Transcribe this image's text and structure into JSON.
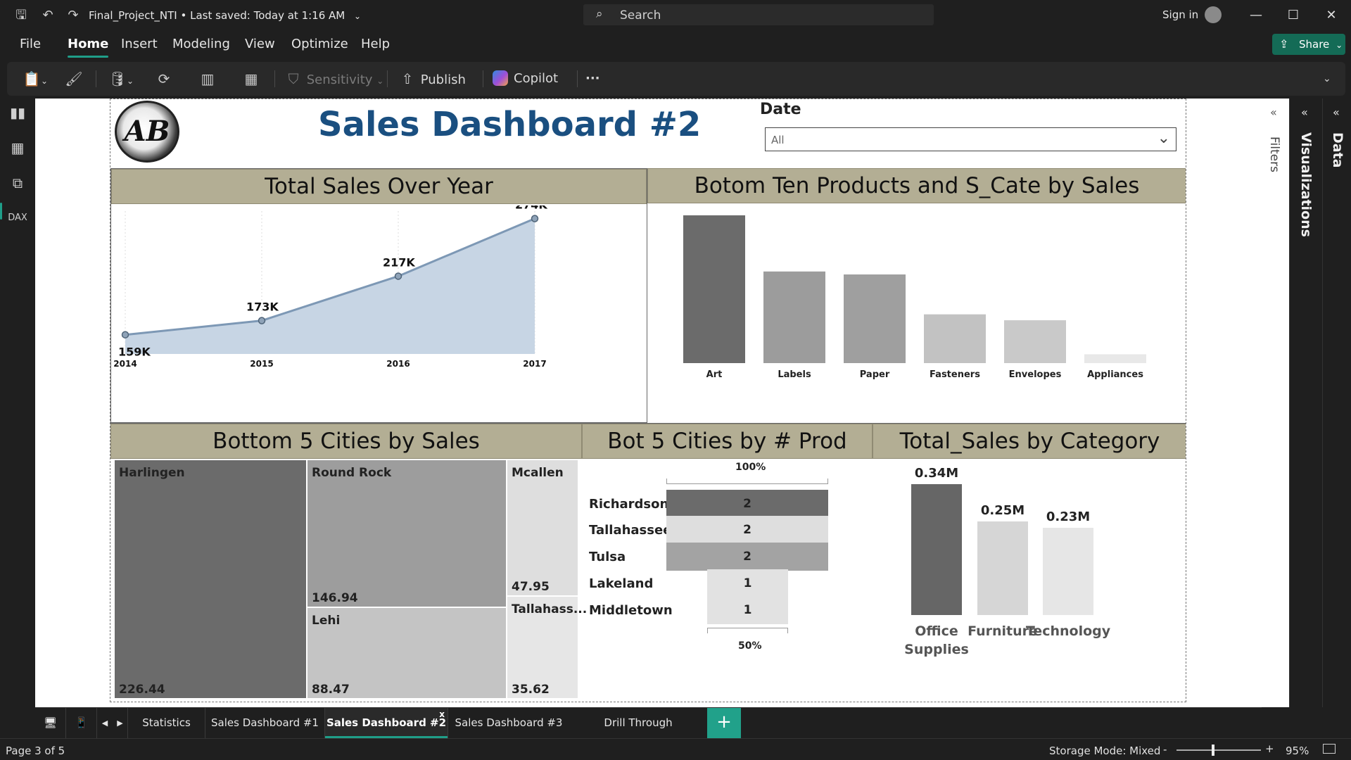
{
  "titlebar": {
    "file_name": "Final_Project_NTI",
    "saved_status": "Last saved: Today at 1:16 AM",
    "search_label": "Search",
    "signin_label": "Sign in"
  },
  "menu": {
    "items": [
      "File",
      "Home",
      "Insert",
      "Modeling",
      "View",
      "Optimize",
      "Help"
    ],
    "active": "Home",
    "share_label": "Share"
  },
  "ribbon": {
    "sensitivity_label": "Sensitivity",
    "publish_label": "Publish",
    "copilot_label": "Copilot",
    "more_label": "···"
  },
  "report": {
    "title": "Sales Dashboard #2",
    "logo_text": "AB",
    "date_filter": {
      "label": "Date",
      "value": "All"
    },
    "panels": {
      "line": "Total Sales Over Year",
      "bar": "Botom Ten Products and S_Cate by Sales",
      "treemap": "Bottom 5 Cities by Sales",
      "funnel": "Bot 5 Cities by # Prod",
      "category": "Total_Sales by Category"
    },
    "treemap": {
      "harlingen": {
        "name": "Harlingen",
        "value": "226.44"
      },
      "roundrock": {
        "name": "Round Rock",
        "value": "146.94"
      },
      "lehi": {
        "name": "Lehi",
        "value": "88.47"
      },
      "mcallen": {
        "name": "Mcallen",
        "value": "47.95"
      },
      "tallahassee": {
        "name": "Tallahass...",
        "value": "35.62"
      }
    },
    "funnel": {
      "top_pct": "100%",
      "bottom_pct": "50%",
      "rows": [
        {
          "city": "Richardson",
          "value": "2"
        },
        {
          "city": "Tallahassee",
          "value": "2"
        },
        {
          "city": "Tulsa",
          "value": "2"
        },
        {
          "city": "Lakeland",
          "value": "1"
        },
        {
          "city": "Middletown",
          "value": "1"
        }
      ]
    },
    "category": {
      "bars": [
        {
          "label": "Office Supplies",
          "value": "0.34M"
        },
        {
          "label": "Furniture",
          "value": "0.25M"
        },
        {
          "label": "Technology",
          "value": "0.23M"
        }
      ]
    }
  },
  "chart_data": [
    {
      "type": "area",
      "title": "Total Sales Over Year",
      "x": [
        "2014",
        "2015",
        "2016",
        "2017"
      ],
      "values": [
        159,
        173,
        217,
        274
      ],
      "labels": [
        "159K",
        "173K",
        "217K",
        "274K"
      ],
      "ylim": [
        140,
        280
      ]
    },
    {
      "type": "bar",
      "title": "Botom Ten Products and S_Cate by Sales",
      "categories": [
        "Art",
        "Labels",
        "Paper",
        "Fasteners",
        "Envelopes",
        "Appliances"
      ],
      "values": [
        100,
        62,
        60,
        33,
        29,
        6
      ]
    },
    {
      "type": "bar",
      "title": "Total_Sales by Category",
      "categories": [
        "Office Supplies",
        "Furniture",
        "Technology"
      ],
      "values": [
        0.34,
        0.25,
        0.23
      ]
    }
  ],
  "right_panes": {
    "filters": "Filters",
    "visualizations": "Visualizations",
    "data": "Data"
  },
  "page_tabs": {
    "tabs": [
      "Statistics",
      "Sales Dashboard #1",
      "Sales Dashboard #2",
      "Sales Dashboard #3",
      "Drill Through"
    ],
    "active": "Sales Dashboard #2",
    "close_label": "x"
  },
  "status": {
    "page": "Page 3 of 5",
    "storage_mode": "Storage Mode: Mixed",
    "zoom": "95%"
  },
  "colors": {
    "accent": "#1f9e89",
    "header_band": "#b3ae94",
    "title_blue": "#1a4f80",
    "area_fill": "#c7d5e4",
    "line_stroke": "#7d98b5"
  }
}
